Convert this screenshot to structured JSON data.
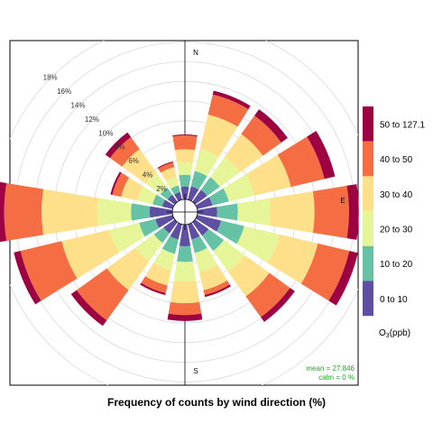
{
  "chart_data": {
    "type": "polar-stacked-bar",
    "title": "Frequency of counts by wind direction (%)",
    "directions": [
      "N",
      "NNE",
      "NE",
      "ENE",
      "E",
      "ESE",
      "SE",
      "SSE",
      "S",
      "SSW",
      "SW",
      "WSW",
      "W",
      "WNW",
      "NW",
      "NNW"
    ],
    "directions_deg": [
      0,
      22.5,
      45,
      67.5,
      90,
      112.5,
      135,
      157.5,
      180,
      202.5,
      225,
      247.5,
      270,
      292.5,
      315,
      337.5
    ],
    "bin_edges": [
      0,
      10,
      20,
      30,
      40,
      50,
      127.1
    ],
    "bins": [
      "0 to 10",
      "10 to 20",
      "20 to 30",
      "30 to 40",
      "40 to 50",
      "50 to 127.1"
    ],
    "bin_colors": [
      "#5e4fa2",
      "#66c2a5",
      "#e6f598",
      "#fee08b",
      "#f46d43",
      "#9e0142"
    ],
    "cumulative": [
      [
        1.3,
        2.5,
        3.8,
        5.1,
        6.5,
        6.6
      ],
      [
        1.4,
        3.0,
        5.3,
        8.9,
        11.0,
        11.4
      ],
      [
        1.5,
        3.1,
        5.6,
        8.5,
        10.8,
        11.6
      ],
      [
        1.6,
        3.3,
        6.0,
        9.8,
        13.3,
        14.4
      ],
      [
        2.0,
        4.1,
        7.4,
        11.9,
        15.4,
        16.4
      ],
      [
        2.5,
        4.9,
        8.6,
        12.6,
        15.9,
        16.8
      ],
      [
        1.7,
        3.6,
        6.2,
        9.3,
        11.9,
        12.5
      ],
      [
        1.6,
        3.0,
        5.0,
        6.9,
        7.4,
        7.6
      ],
      [
        2.2,
        3.8,
        5.8,
        8.0,
        9.2,
        9.8
      ],
      [
        1.6,
        3.1,
        4.8,
        6.4,
        7.2,
        7.4
      ],
      [
        1.4,
        2.6,
        4.9,
        8.5,
        12.3,
        13.0
      ],
      [
        1.8,
        3.5,
        6.6,
        11.6,
        15.9,
        16.6
      ],
      [
        2.3,
        4.2,
        7.6,
        13.3,
        17.1,
        17.9
      ],
      [
        1.1,
        2.1,
        3.7,
        5.4,
        6.3,
        6.5
      ],
      [
        0.9,
        1.8,
        3.6,
        6.6,
        8.1,
        8.7
      ],
      [
        0.8,
        1.5,
        2.4,
        3.4,
        3.9,
        4.0
      ]
    ],
    "radial_ticks": [
      2,
      4,
      6,
      8,
      10,
      12,
      14,
      16,
      18
    ],
    "radial_tick_labels": [
      "2%",
      "4%",
      "6%",
      "8%",
      "10%",
      "12%",
      "14%",
      "16%",
      "18%"
    ],
    "radial_max": 18.5,
    "compass_labels": [
      "N",
      "E",
      "S"
    ],
    "stats": {
      "mean": "mean = 27.846",
      "calm": "calm = 0 %"
    },
    "legend": {
      "title_main": "O",
      "title_sub": "3",
      "title_tail": "(ppb)",
      "placement": "right"
    }
  }
}
